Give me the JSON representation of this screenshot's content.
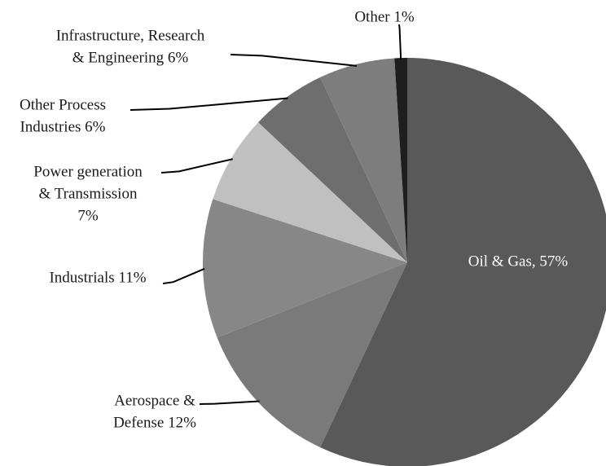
{
  "chart_data": {
    "type": "pie",
    "values": [
      57,
      12,
      11,
      7,
      6,
      6,
      1
    ],
    "value_labels": [
      [
        "Oil & Gas, 57%"
      ],
      [
        "Aerospace &",
        "Defense 12%"
      ],
      [
        "Industrials 11%"
      ],
      [
        "Power generation",
        "& Transmission",
        "7%"
      ],
      [
        "Other Process",
        "Industries 6%"
      ],
      [
        "Infrastructure, Research",
        "& Engineering 6%"
      ],
      [
        "Other 1%"
      ]
    ],
    "colors": [
      "#595959",
      "#7a7a7a",
      "#878787",
      "#c0c0c0",
      "#6e6e6e",
      "#7d7d7d",
      "#1e1e1e"
    ]
  }
}
